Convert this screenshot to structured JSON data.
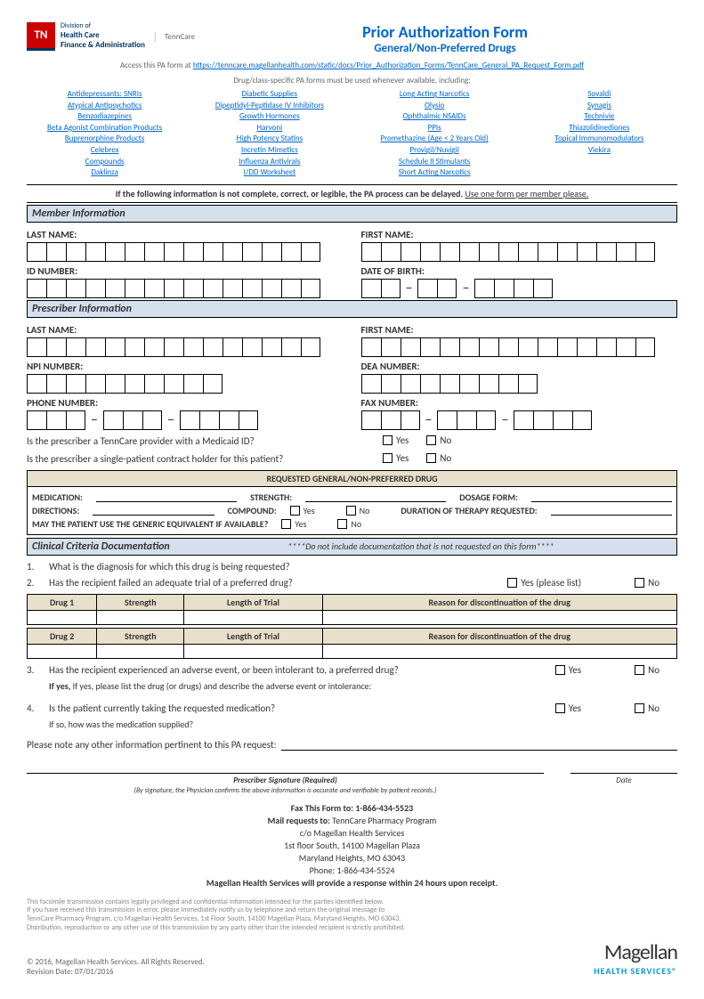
{
  "header": {
    "tn_abbr": "TN",
    "tn_div": "Division of",
    "tn_hc": "Health Care",
    "tn_fa": "Finance & Administration",
    "tenncare": "TennCare",
    "title": "Prior Authorization Form",
    "subtitle": "General/Non-Preferred Drugs"
  },
  "access": {
    "prefix": "Access this PA form at ",
    "url": "https://tenncare.magellanhealth.com/static/docs/Prior_Authorization_Forms/TennCare_General_PA_Request_Form.pdf"
  },
  "drug_class_note": "Drug/class-specific PA forms must be used whenever available, including:",
  "links": {
    "col1": [
      "Antidepressants: SNRIs",
      "Atypical Antipsychotics",
      "Benzodiazepines",
      "Beta Agonist Combination Products",
      "Buprenorphine Products",
      "Celebrex",
      "Compounds",
      "Daklinza"
    ],
    "col2": [
      "Diabetic Supplies",
      "Dipeptidyl-Peptidase IV Inhibitors",
      "Growth Hormones",
      "Harvoni",
      "High Potency Statins",
      "Incretin Mimetics",
      "Influenza Antivirals",
      "I/DD Worksheet"
    ],
    "col3": [
      "Long Acting Narcotics",
      "Olysio",
      "Ophthalmic NSAIDs",
      "PPIs",
      "Promethazine (Age < 2 Years Old)",
      "Provigil/Nuvigil",
      "Schedule II Stimulants",
      "Short Acting Narcotics"
    ],
    "col4": [
      "Sovaldi",
      "Synagis",
      "Technivie",
      "Thiazolidinediones",
      "Topical Immunomodulators",
      "Viekira"
    ]
  },
  "warning": {
    "bold": "If the following information is not complete, correct, or legible, the PA process can be delayed.",
    "under": "Use one form per member please."
  },
  "sections": {
    "member": "Member Information",
    "prescriber": "Prescriber Information",
    "clinical": "Clinical Criteria Documentation"
  },
  "labels": {
    "last": "LAST NAME:",
    "first": "FIRST NAME:",
    "id": "ID NUMBER:",
    "dob": "DATE OF BIRTH:",
    "npi": "NPI NUMBER:",
    "dea": "DEA NUMBER:",
    "phone": "PHONE NUMBER:",
    "fax": "FAX NUMBER:",
    "yes": "Yes",
    "no": "No",
    "yes_list": "Yes (please list)"
  },
  "q": {
    "medicaid": "Is the prescriber a TennCare provider with a Medicaid ID?",
    "contract": "Is the prescriber a single-patient contract holder for this patient?"
  },
  "req": {
    "hdr": "REQUESTED GENERAL/NON-PREFERRED DRUG",
    "med": "MEDICATION:",
    "strength": "STRENGTH:",
    "dosage": "DOSAGE FORM:",
    "directions": "DIRECTIONS:",
    "compound": "COMPOUND:",
    "duration": "DURATION OF THERAPY REQUESTED:",
    "generic": "MAY THE PATIENT USE THE GENERIC EQUIVALENT IF AVAILABLE?"
  },
  "clinical_note": "****Do not include documentation that is not requested on this form****",
  "cq": {
    "1": "What is the diagnosis for which this drug is being requested?",
    "2": "Has the recipient failed an adequate trial of a preferred drug?",
    "3": "Has the recipient experienced an adverse event, or been intolerant to, a preferred drug?",
    "3sub": "If yes, please list the drug (or drugs) and describe the adverse event or intolerance:",
    "4": "Is the patient currently taking the requested medication?",
    "4sub": "If so, how was the medication supplied?"
  },
  "trial": {
    "drug1": "Drug 1",
    "drug2": "Drug 2",
    "strength": "Strength",
    "length": "Length of Trial",
    "reason": "Reason for discontinuation of the drug"
  },
  "note": "Please note any other information pertinent to this PA request:",
  "sig": {
    "label": "Prescriber Signature (Required)",
    "sub": "(By signature, the Physician confirms the above information is accurate and verifiable by patient records.)",
    "date": "Date"
  },
  "mail": {
    "fax": "Fax This Form to: 1-866-434-5523",
    "req": "Mail requests to: TennCare Pharmacy Program",
    "co": "c/o Magellan Health Services",
    "floor": "1st floor South, 14100 Magellan Plaza",
    "city": "Maryland Heights, MO 63043",
    "phone": "Phone: 1-866-434-5524",
    "response": "Magellan Health Services will provide a response within 24 hours upon receipt."
  },
  "disclaimer": "This facsimile transmission contains legally privileged and confidential information intended for the parties identified below.\nIf you have received this transmission in error, please immediately notify us by telephone and return the original message to\nTennCare Pharmacy Program, c/o Magellan Health Services, 1st Floor South, 14100 Magellan Plaza, Maryland Heights, MO 63043.\nDistribution, reproduction or any other use of this transmission by any party other than the intended recipient is strictly prohibited.",
  "footer": {
    "copyright": "© 2016, Magellan Health Services. All Rights Reserved.",
    "revision": "Revision Date: 07/01/2016",
    "brand": "Magellan",
    "brand_sub": "HEALTH SERVICES®"
  }
}
